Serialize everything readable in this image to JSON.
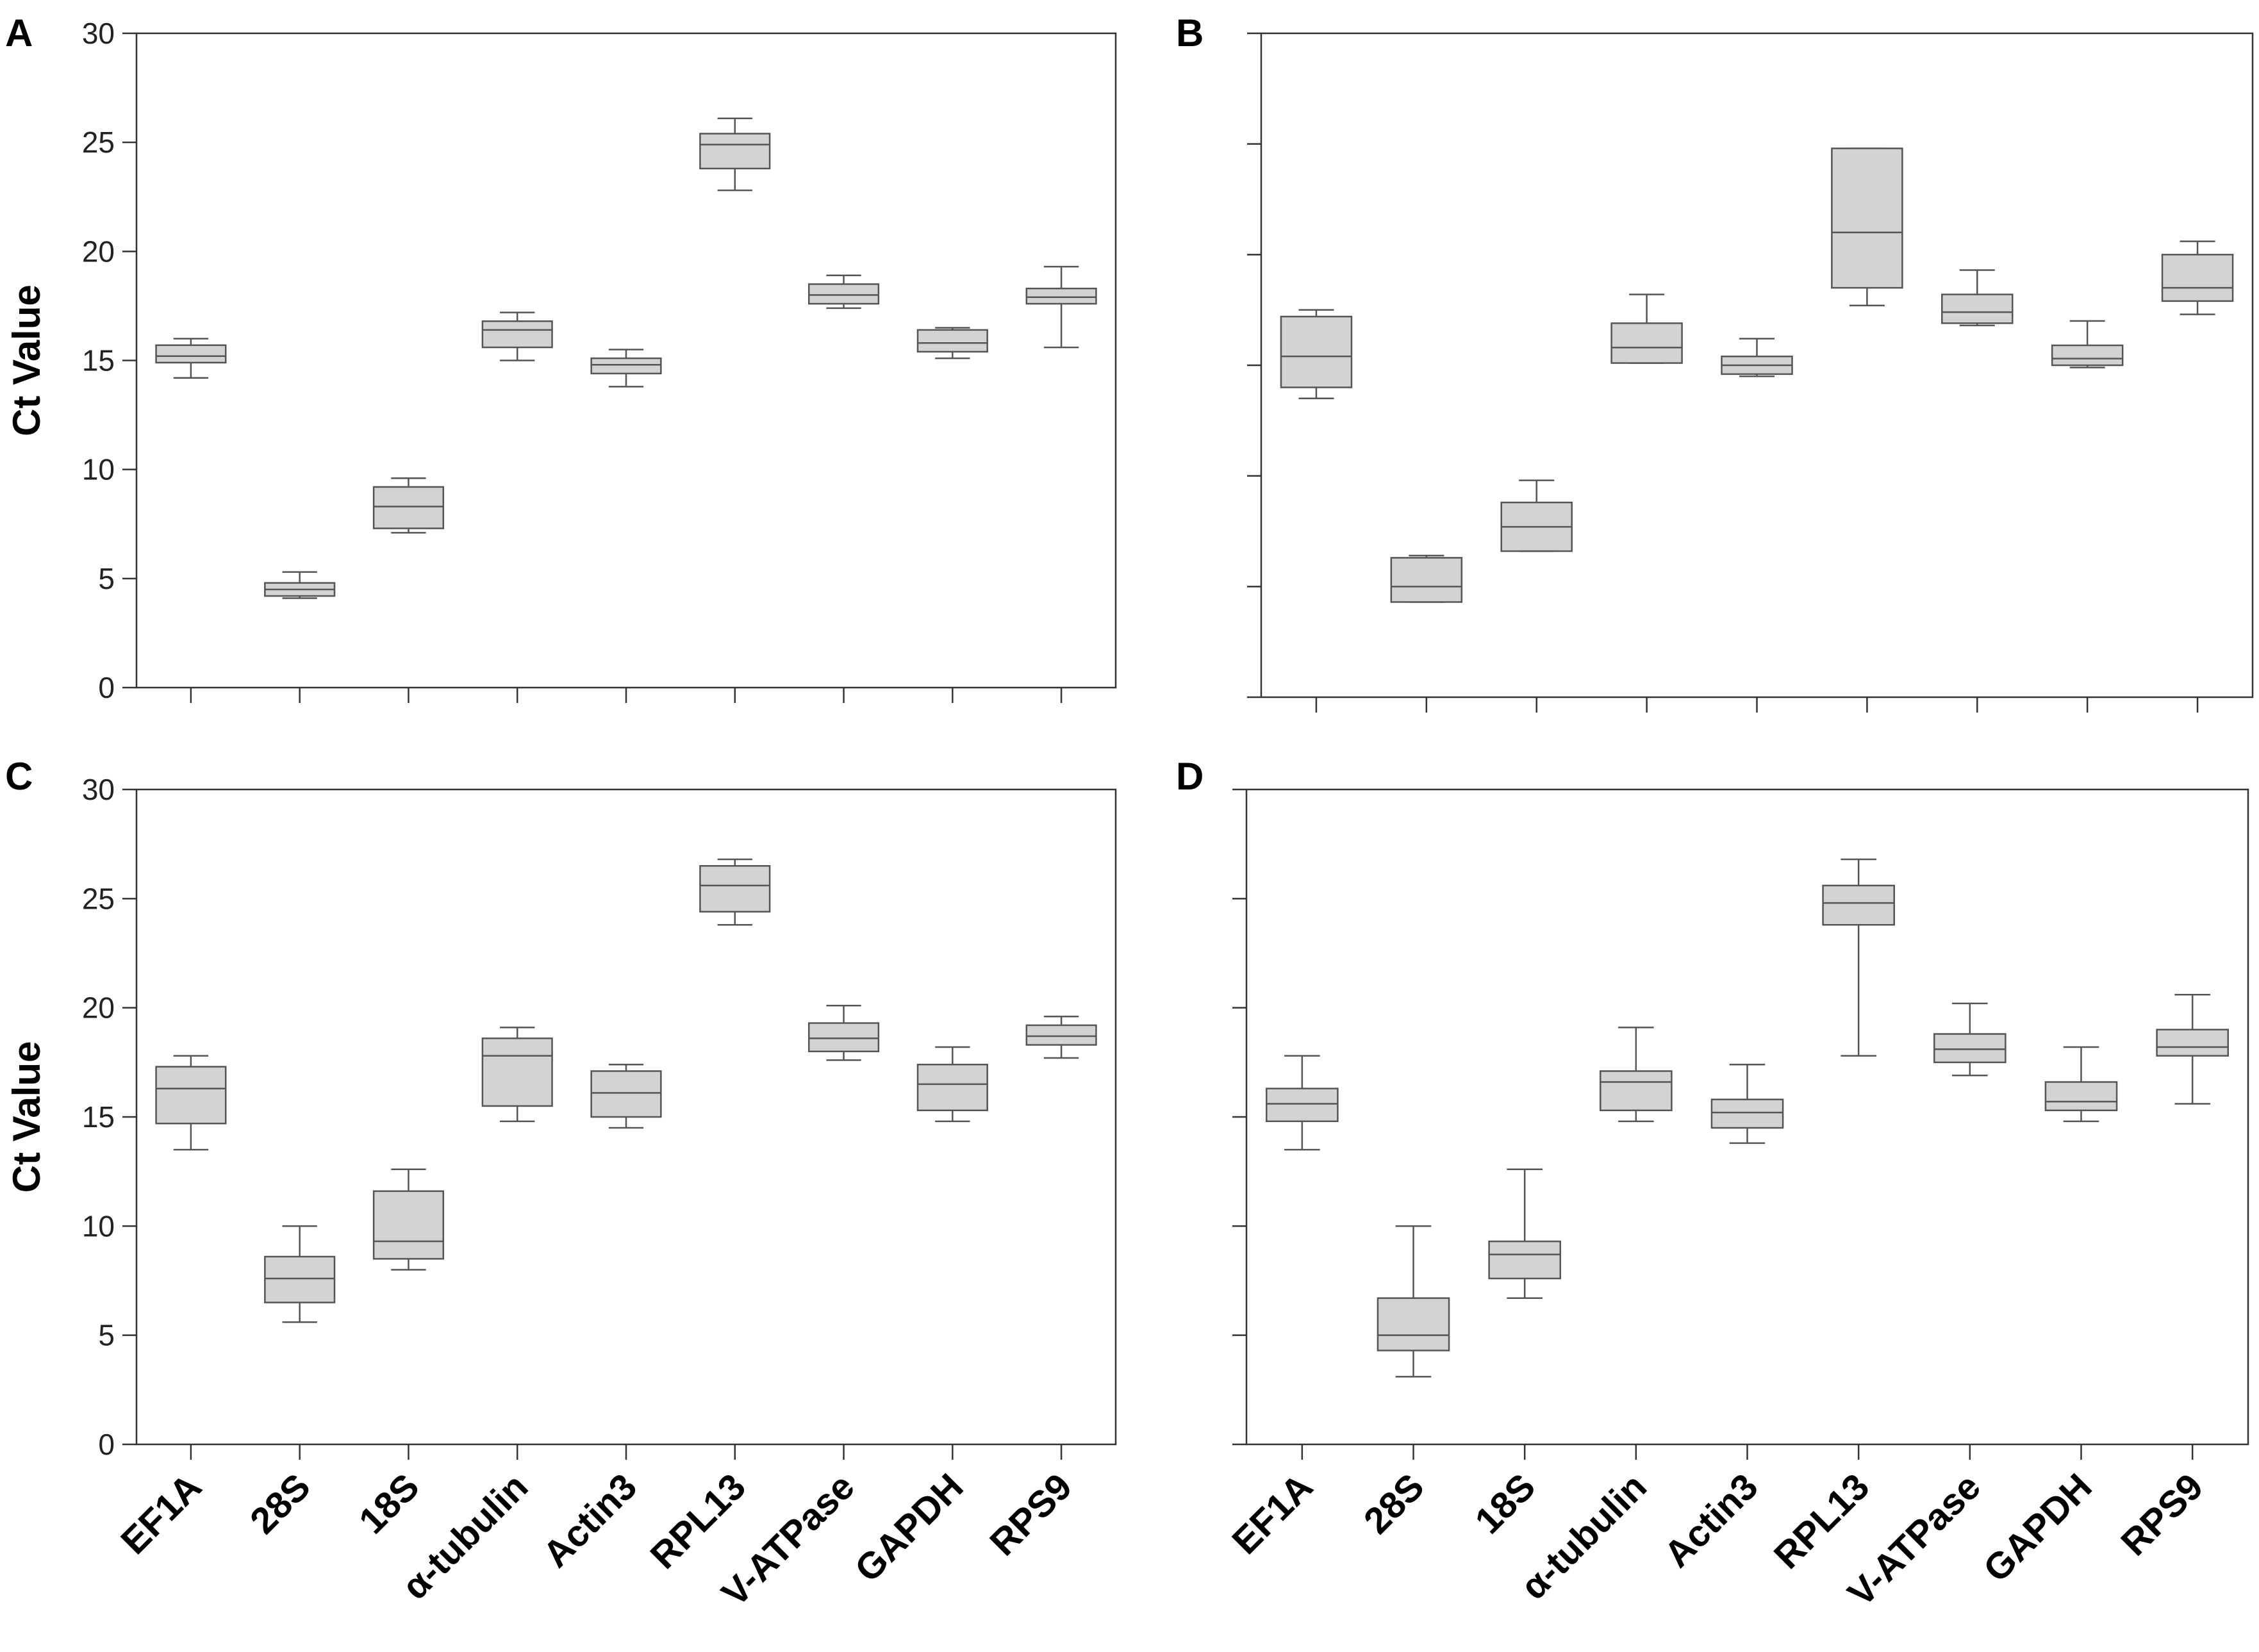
{
  "chart_data": [
    {
      "type": "box",
      "panel": "A",
      "ylabel": "Ct Value",
      "ylim": [
        0,
        30
      ],
      "yticks": [
        0,
        5,
        10,
        15,
        20,
        25,
        30
      ],
      "categories": [
        "EF1A",
        "28S",
        "18S",
        "α-tubulin",
        "Actin3",
        "RPL13",
        "V-ATPase",
        "GAPDH",
        "RPS9"
      ],
      "boxes": [
        {
          "min": 14.2,
          "q1": 14.9,
          "median": 15.2,
          "q3": 15.7,
          "max": 16.0
        },
        {
          "min": 4.1,
          "q1": 4.2,
          "median": 4.5,
          "q3": 4.8,
          "max": 5.3
        },
        {
          "min": 7.1,
          "q1": 7.3,
          "median": 8.3,
          "q3": 9.2,
          "max": 9.6
        },
        {
          "min": 15.0,
          "q1": 15.6,
          "median": 16.4,
          "q3": 16.8,
          "max": 17.2
        },
        {
          "min": 13.8,
          "q1": 14.4,
          "median": 14.8,
          "q3": 15.1,
          "max": 15.5
        },
        {
          "min": 22.8,
          "q1": 23.8,
          "median": 24.9,
          "q3": 25.4,
          "max": 26.1
        },
        {
          "min": 17.4,
          "q1": 17.6,
          "median": 18.0,
          "q3": 18.5,
          "max": 18.9
        },
        {
          "min": 15.1,
          "q1": 15.4,
          "median": 15.8,
          "q3": 16.4,
          "max": 16.5
        },
        {
          "min": 15.6,
          "q1": 17.6,
          "median": 17.9,
          "q3": 18.3,
          "max": 19.3
        }
      ]
    },
    {
      "type": "box",
      "panel": "B",
      "ylabel": "",
      "ylim": [
        0,
        30
      ],
      "yticks": [
        0,
        5,
        10,
        15,
        20,
        25,
        30
      ],
      "categories": [
        "EF1A",
        "28S",
        "18S",
        "α-tubulin",
        "Actin3",
        "RPL13",
        "V-ATPase",
        "GAPDH",
        "RPS9"
      ],
      "boxes": [
        {
          "min": 13.5,
          "q1": 14.0,
          "median": 15.4,
          "q3": 17.2,
          "max": 17.5
        },
        {
          "min": 4.3,
          "q1": 4.3,
          "median": 5.0,
          "q3": 6.3,
          "max": 6.4
        },
        {
          "min": 6.6,
          "q1": 6.6,
          "median": 7.7,
          "q3": 8.8,
          "max": 9.8
        },
        {
          "min": 15.1,
          "q1": 15.1,
          "median": 15.8,
          "q3": 16.9,
          "max": 18.2
        },
        {
          "min": 14.5,
          "q1": 14.6,
          "median": 15.0,
          "q3": 15.4,
          "max": 16.2
        },
        {
          "min": 17.7,
          "q1": 18.5,
          "median": 21.0,
          "q3": 24.8,
          "max": 24.8
        },
        {
          "min": 16.8,
          "q1": 16.9,
          "median": 17.4,
          "q3": 18.2,
          "max": 19.3
        },
        {
          "min": 14.9,
          "q1": 15.0,
          "median": 15.3,
          "q3": 15.9,
          "max": 17.0
        },
        {
          "min": 17.3,
          "q1": 17.9,
          "median": 18.5,
          "q3": 20.0,
          "max": 20.6
        }
      ]
    },
    {
      "type": "box",
      "panel": "C",
      "ylabel": "Ct Value",
      "ylim": [
        0,
        30
      ],
      "yticks": [
        0,
        5,
        10,
        15,
        20,
        25,
        30
      ],
      "categories": [
        "EF1A",
        "28S",
        "18S",
        "α-tubulin",
        "Actin3",
        "RPL13",
        "V-ATPase",
        "GAPDH",
        "RPS9"
      ],
      "boxes": [
        {
          "min": 13.5,
          "q1": 14.7,
          "median": 16.3,
          "q3": 17.3,
          "max": 17.8
        },
        {
          "min": 5.6,
          "q1": 6.5,
          "median": 7.6,
          "q3": 8.6,
          "max": 10.0
        },
        {
          "min": 8.0,
          "q1": 8.5,
          "median": 9.3,
          "q3": 11.6,
          "max": 12.6
        },
        {
          "min": 14.8,
          "q1": 15.5,
          "median": 17.8,
          "q3": 18.6,
          "max": 19.1
        },
        {
          "min": 14.5,
          "q1": 15.0,
          "median": 16.1,
          "q3": 17.1,
          "max": 17.4
        },
        {
          "min": 23.8,
          "q1": 24.4,
          "median": 25.6,
          "q3": 26.5,
          "max": 26.8
        },
        {
          "min": 17.6,
          "q1": 18.0,
          "median": 18.6,
          "q3": 19.3,
          "max": 20.1
        },
        {
          "min": 14.8,
          "q1": 15.3,
          "median": 16.5,
          "q3": 17.4,
          "max": 18.2
        },
        {
          "min": 17.7,
          "q1": 18.3,
          "median": 18.7,
          "q3": 19.2,
          "max": 19.6
        }
      ]
    },
    {
      "type": "box",
      "panel": "D",
      "ylabel": "",
      "ylim": [
        0,
        30
      ],
      "yticks": [
        0,
        5,
        10,
        15,
        20,
        25,
        30
      ],
      "categories": [
        "EF1A",
        "28S",
        "18S",
        "α-tubulin",
        "Actin3",
        "RPL13",
        "V-ATPase",
        "GAPDH",
        "RPS9"
      ],
      "boxes": [
        {
          "min": 13.5,
          "q1": 14.8,
          "median": 15.6,
          "q3": 16.3,
          "max": 17.8
        },
        {
          "min": 3.1,
          "q1": 4.3,
          "median": 5.0,
          "q3": 6.7,
          "max": 10.0
        },
        {
          "min": 6.7,
          "q1": 7.6,
          "median": 8.7,
          "q3": 9.3,
          "max": 12.6
        },
        {
          "min": 14.8,
          "q1": 15.3,
          "median": 16.6,
          "q3": 17.1,
          "max": 19.1
        },
        {
          "min": 13.8,
          "q1": 14.5,
          "median": 15.2,
          "q3": 15.8,
          "max": 17.4
        },
        {
          "min": 17.8,
          "q1": 23.8,
          "median": 24.8,
          "q3": 25.6,
          "max": 26.8
        },
        {
          "min": 16.9,
          "q1": 17.5,
          "median": 18.1,
          "q3": 18.8,
          "max": 20.2
        },
        {
          "min": 14.8,
          "q1": 15.3,
          "median": 15.7,
          "q3": 16.6,
          "max": 18.2
        },
        {
          "min": 15.6,
          "q1": 17.8,
          "median": 18.2,
          "q3": 19.0,
          "max": 20.6
        }
      ]
    }
  ]
}
